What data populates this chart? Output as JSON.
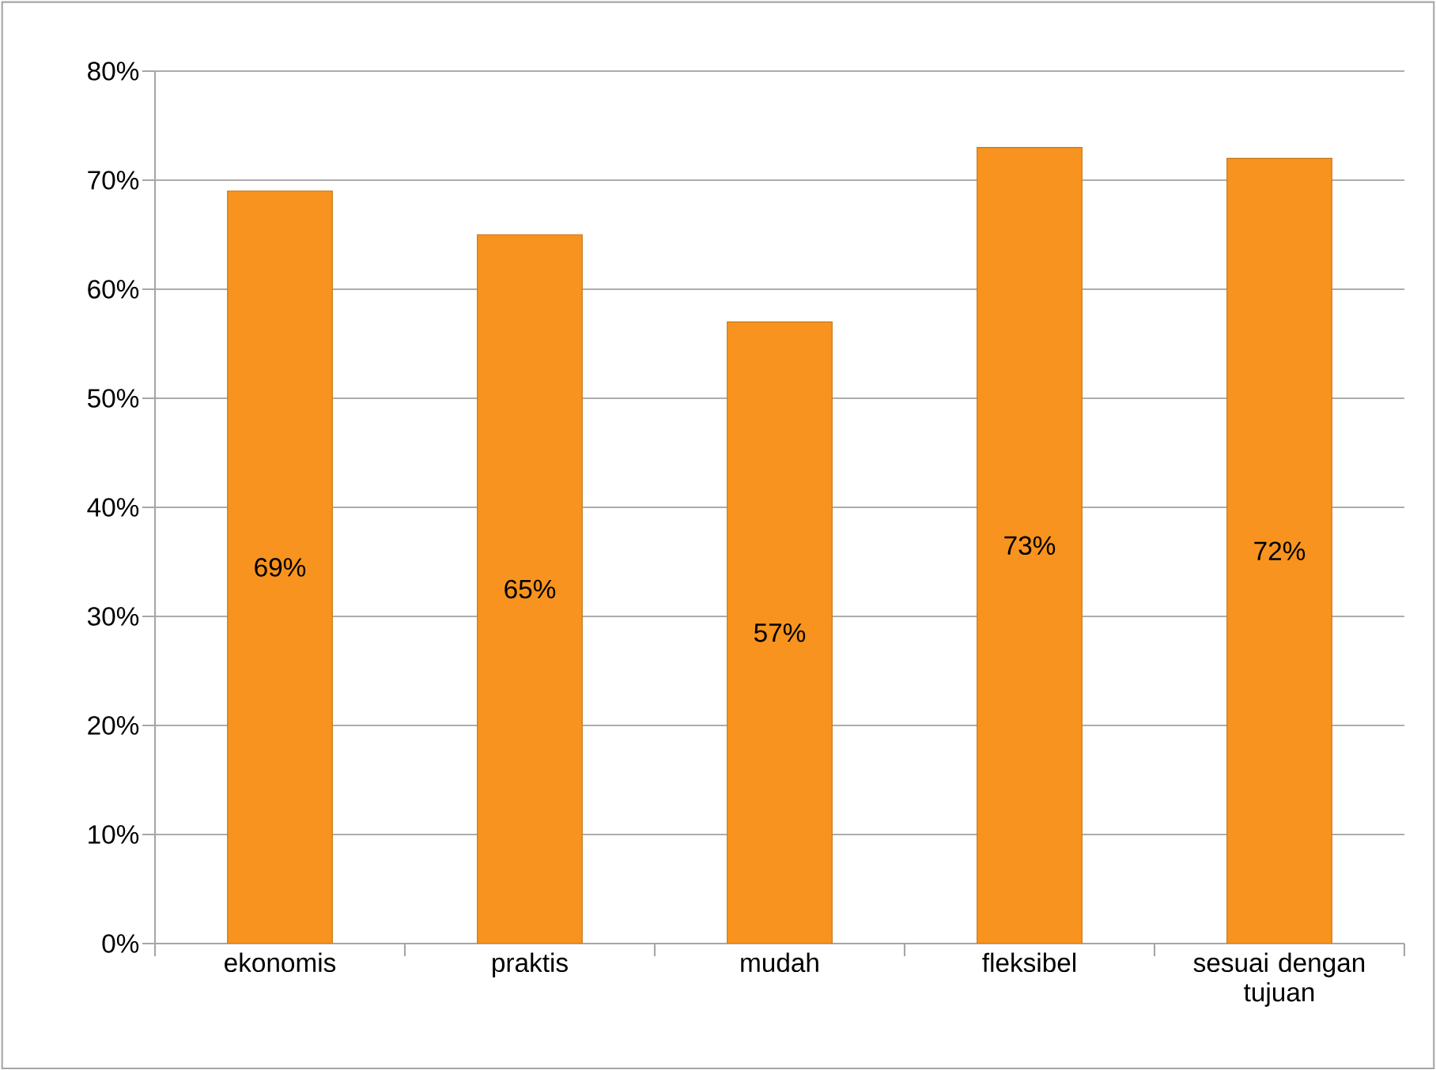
{
  "chart_data": {
    "type": "bar",
    "categories": [
      "ekonomis",
      "praktis",
      "mudah",
      "fleksibel",
      "sesuai dengan tujuan"
    ],
    "values": [
      69,
      65,
      57,
      73,
      72
    ],
    "value_labels": [
      "69%",
      "65%",
      "57%",
      "73%",
      "72%"
    ],
    "color": "#f7931e",
    "ylim": [
      0,
      80
    ],
    "yticks": [
      {
        "value": 0,
        "label": "0%"
      },
      {
        "value": 10,
        "label": "10%"
      },
      {
        "value": 20,
        "label": "20%"
      },
      {
        "value": 30,
        "label": "30%"
      },
      {
        "value": 40,
        "label": "40%"
      },
      {
        "value": 50,
        "label": "50%"
      },
      {
        "value": 60,
        "label": "60%"
      },
      {
        "value": 70,
        "label": "70%"
      },
      {
        "value": 80,
        "label": "80%"
      }
    ],
    "grid": "y"
  }
}
